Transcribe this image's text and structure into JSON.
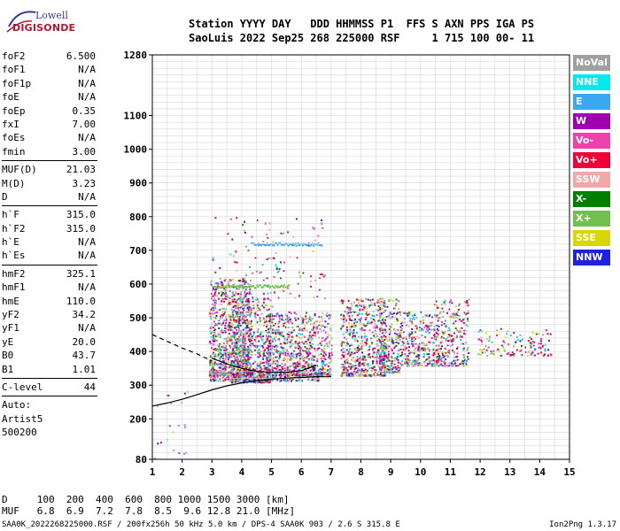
{
  "header": {
    "line1": "Station YYYY DAY   DDD HHMMSS P1  FFS S AXN PPS IGA PS",
    "line2": "SaoLuis 2022 Sep25 268 225000 RSF     1 715 100 00- 11"
  },
  "logo": {
    "top": "Lowell",
    "bottom": "DIGISONDE"
  },
  "params": [
    {
      "k": "foF2",
      "v": "6.500"
    },
    {
      "k": "foF1",
      "v": "N/A"
    },
    {
      "k": "foF1p",
      "v": "N/A"
    },
    {
      "k": "foE",
      "v": "N/A"
    },
    {
      "k": "foEp",
      "v": "0.35"
    },
    {
      "k": "fxI",
      "v": "7.00"
    },
    {
      "k": "foEs",
      "v": "N/A"
    },
    {
      "k": "fmin",
      "v": "3.00"
    },
    {
      "sep": true
    },
    {
      "k": "MUF(D)",
      "v": "21.03"
    },
    {
      "k": "M(D)",
      "v": "3.23"
    },
    {
      "k": "D",
      "v": "N/A"
    },
    {
      "sep": true
    },
    {
      "k": "h`F",
      "v": "315.0"
    },
    {
      "k": "h`F2",
      "v": "315.0"
    },
    {
      "k": "h`E",
      "v": "N/A"
    },
    {
      "k": "h`Es",
      "v": "N/A"
    },
    {
      "sep": true
    },
    {
      "k": "hmF2",
      "v": "325.1"
    },
    {
      "k": "hmF1",
      "v": "N/A"
    },
    {
      "k": "hmE",
      "v": "110.0"
    },
    {
      "k": "yF2",
      "v": "34.2"
    },
    {
      "k": "yF1",
      "v": "N/A"
    },
    {
      "k": "yE",
      "v": "20.0"
    },
    {
      "k": "B0",
      "v": "43.7"
    },
    {
      "k": "B1",
      "v": "1.01"
    },
    {
      "sep": true
    },
    {
      "k": "C-level",
      "v": "44"
    },
    {
      "sep": true
    },
    {
      "k": "Auto:",
      "v": ""
    },
    {
      "k": "Artist5",
      "v": ""
    },
    {
      "k": "500200",
      "v": ""
    }
  ],
  "legend": [
    {
      "label": "NoVal",
      "color": "#a0a0a0"
    },
    {
      "label": "NNE",
      "color": "#00e8f0"
    },
    {
      "label": "E",
      "color": "#3aa8f0"
    },
    {
      "label": "W",
      "color": "#a000b0"
    },
    {
      "label": "Vo-",
      "color": "#f040b0"
    },
    {
      "label": "Vo+",
      "color": "#f00038"
    },
    {
      "label": "SSW",
      "color": "#f0a8a8"
    },
    {
      "label": "X-",
      "color": "#008000"
    },
    {
      "label": "X+",
      "color": "#70c050"
    },
    {
      "label": "SSE",
      "color": "#d8d800"
    },
    {
      "label": "NNW",
      "color": "#2020e0"
    }
  ],
  "chart_data": {
    "type": "scatter",
    "xlim": [
      1,
      15
    ],
    "ylim": [
      80,
      1280
    ],
    "x_ticks": [
      1,
      2,
      3,
      4,
      5,
      6,
      7,
      8,
      9,
      10,
      11,
      12,
      13,
      14,
      15
    ],
    "y_tick_labels": [
      "1280",
      "1100",
      "1000",
      "900",
      "800",
      "700",
      "600",
      "500",
      "400",
      "300",
      "200",
      "80"
    ],
    "y_tick_values": [
      1280,
      1100,
      1000,
      900,
      800,
      700,
      600,
      500,
      400,
      300,
      200,
      80
    ],
    "grid": true,
    "traces": [
      {
        "name": "profile",
        "style": "solid",
        "x": [
          1.0,
          1.5,
          2.0,
          2.5,
          3.0,
          3.5,
          4.0,
          4.5,
          5.0,
          5.5,
          6.0,
          6.5,
          7.0
        ],
        "y": [
          238,
          247,
          258,
          272,
          286,
          298,
          307,
          313,
          318,
          321,
          323,
          325,
          325
        ]
      },
      {
        "name": "trace",
        "style": "dashed",
        "x": [
          1.0,
          1.5,
          2.0,
          2.5,
          3.0
        ],
        "y": [
          450,
          430,
          410,
          393,
          372
        ]
      },
      {
        "name": "F-trace",
        "style": "solid",
        "x": [
          3.0,
          3.5,
          4.0,
          4.5,
          5.0,
          5.5,
          6.0,
          6.3,
          6.5
        ],
        "y": [
          380,
          363,
          350,
          341,
          338,
          338,
          343,
          352,
          360
        ]
      }
    ]
  },
  "footer": {
    "d_row": "D     100  200  400  600  800 1000 1500 3000 [km]",
    "muf_row": "MUF   6.8  6.9  7.2  7.8  8.5  9.6 12.8 21.0 [MHz]",
    "file": "SAA0K_2022268225000.RSF / 200fx256h 50 kHz 5.0 km / DPS-4 SAA0K 903 / 2.6 S 315.8 E",
    "version": "Ion2Png 1.3.17"
  }
}
